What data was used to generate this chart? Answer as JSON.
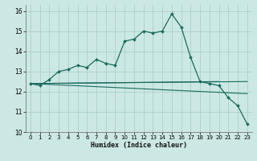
{
  "xlabel": "Humidex (Indice chaleur)",
  "background_color": "#cce8e4",
  "grid_color": "#aacfca",
  "line_color": "#1a6b5e",
  "xlim": [
    -0.5,
    23.5
  ],
  "ylim": [
    10,
    16.3
  ],
  "yticks": [
    10,
    11,
    12,
    13,
    14,
    15,
    16
  ],
  "xticks": [
    0,
    1,
    2,
    3,
    4,
    5,
    6,
    7,
    8,
    9,
    10,
    11,
    12,
    13,
    14,
    15,
    16,
    17,
    18,
    19,
    20,
    21,
    22,
    23
  ],
  "curve1_x": [
    0,
    1,
    2,
    3,
    4,
    5,
    6,
    7,
    8,
    9,
    10,
    11,
    12,
    13,
    14,
    15,
    16,
    17,
    18,
    19,
    20,
    21,
    22,
    23
  ],
  "curve1_y": [
    12.4,
    12.3,
    12.6,
    13.0,
    13.1,
    13.3,
    13.2,
    13.6,
    13.4,
    13.3,
    14.5,
    14.6,
    15.0,
    14.9,
    15.0,
    15.85,
    15.2,
    13.7,
    12.5,
    12.4,
    12.3,
    11.7,
    11.3,
    10.4
  ],
  "line2_x": [
    0,
    23
  ],
  "line2_y": [
    12.4,
    12.5
  ],
  "line3_x": [
    0,
    23
  ],
  "line3_y": [
    12.4,
    11.9
  ],
  "line4_x": [
    0,
    20
  ],
  "line4_y": [
    12.4,
    12.5
  ]
}
